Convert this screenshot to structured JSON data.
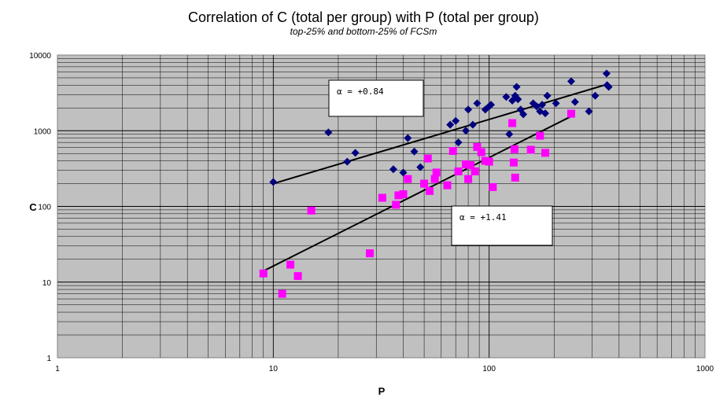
{
  "chart_data": {
    "type": "scatter",
    "title": "Correlation of C (total per group) with P (total per group)",
    "subtitle": "top-25% and bottom-25% of FCSm",
    "xlabel": "P",
    "ylabel": "C",
    "xscale": "log",
    "yscale": "log",
    "xlim": [
      1,
      1000
    ],
    "ylim": [
      1,
      10000
    ],
    "x_ticks": [
      "1",
      "10",
      "100",
      "1000"
    ],
    "y_ticks": [
      "1",
      "10",
      "100",
      "1000",
      "10000"
    ],
    "grid": true,
    "plot_background": "#c0c0c0",
    "series": [
      {
        "marker": "diamond",
        "color": "#000080",
        "x": [
          10,
          18,
          22,
          24,
          36,
          40,
          42,
          45,
          48,
          66,
          70,
          72,
          78,
          80,
          84,
          88,
          96,
          100,
          102,
          120,
          124,
          128,
          132,
          134,
          136,
          140,
          144,
          160,
          166,
          172,
          176,
          182,
          186,
          204,
          240,
          250,
          290,
          310,
          350,
          352,
          358
        ],
        "y": [
          210,
          950,
          390,
          510,
          310,
          280,
          800,
          530,
          330,
          1200,
          1350,
          700,
          1000,
          1900,
          1200,
          2300,
          1900,
          2100,
          2200,
          2800,
          900,
          2500,
          2900,
          3800,
          2600,
          1900,
          1650,
          2300,
          2100,
          1800,
          2200,
          1700,
          2900,
          2300,
          4500,
          2400,
          1800,
          2900,
          5700,
          4000,
          3800
        ],
        "fit_line": {
          "x": [
            10,
            352
          ],
          "y": [
            200,
            4100
          ]
        }
      },
      {
        "marker": "square",
        "color": "#ff00ff",
        "x": [
          9,
          11,
          12,
          13,
          15,
          28,
          32,
          37,
          38,
          40,
          42,
          50,
          52,
          53,
          56,
          57,
          64,
          68,
          72,
          78,
          80,
          82,
          86,
          88,
          92,
          96,
          100,
          104,
          128,
          130,
          131,
          132,
          156,
          172,
          182,
          240
        ],
        "y": [
          13,
          7,
          17,
          12,
          88,
          24,
          130,
          105,
          140,
          145,
          230,
          200,
          430,
          160,
          230,
          280,
          190,
          540,
          290,
          360,
          230,
          350,
          290,
          610,
          520,
          400,
          390,
          180,
          1260,
          380,
          570,
          240,
          560,
          860,
          510,
          1680
        ],
        "fit_line": {
          "x": [
            9,
            240
          ],
          "y": [
            14,
            1550
          ]
        }
      }
    ],
    "annotations": [
      {
        "text": "α = +0.84"
      },
      {
        "text": "α = +1.41"
      }
    ]
  }
}
